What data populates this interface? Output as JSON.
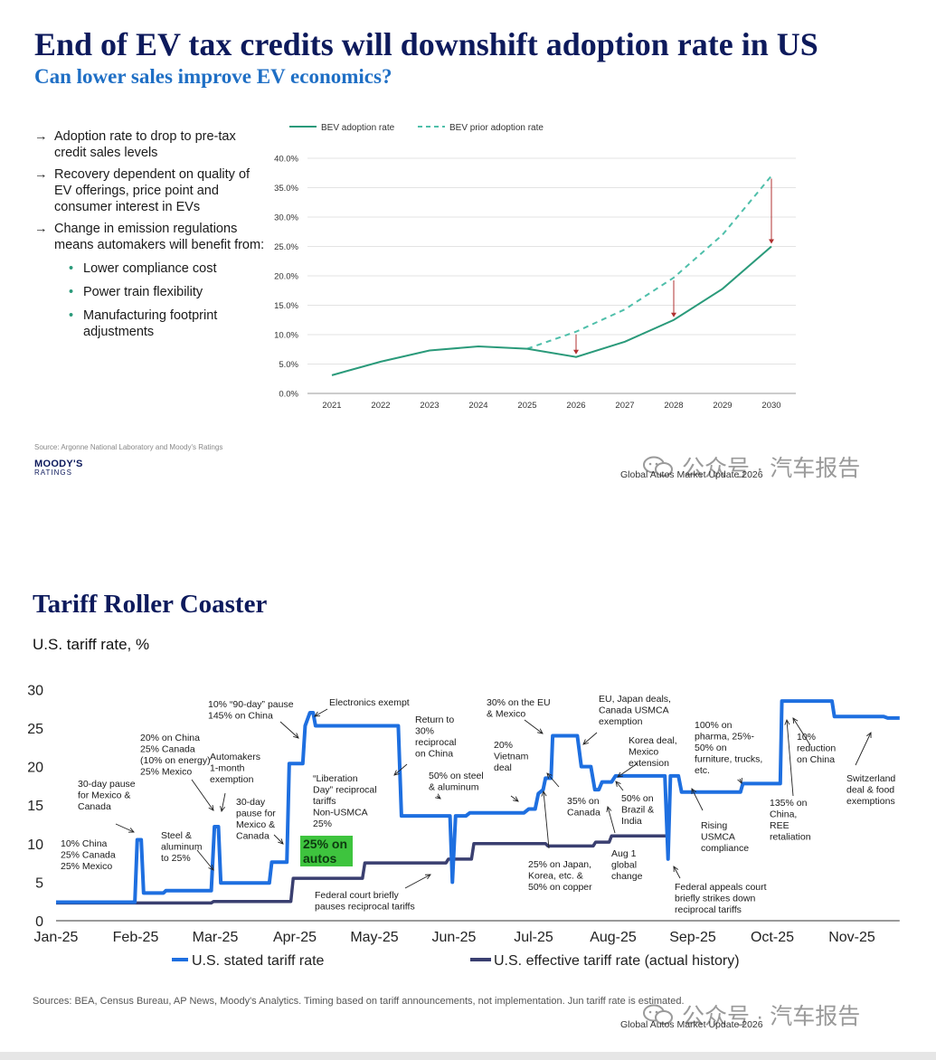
{
  "slide1": {
    "title": "End of EV tax credits will downshift adoption rate in US",
    "subtitle": "Can lower sales improve EV economics?",
    "bullets": [
      "Adoption rate to drop to pre-tax credit sales levels",
      "Recovery dependent on quality of EV offerings, price point and consumer interest in EVs",
      "Change in emission regulations means automakers will benefit from:"
    ],
    "sub_bullets": [
      "Lower compliance cost",
      "Power train flexibility",
      "Manufacturing footprint adjustments"
    ],
    "arrow_glyph": "→",
    "dot_glyph": "•",
    "source": "Source: Argonne National Laboratory and Moody's Ratings",
    "logo_line1": "MOODY'S",
    "logo_line2": "RATINGS",
    "footer": "Global Autos Market Update 2026",
    "watermark": "公众号 · 汽车报告"
  },
  "slide2": {
    "title": "Tariff Roller Coaster",
    "ylabel": "U.S. tariff rate, %",
    "source": "Sources: BEA, Census Bureau, AP News, Moody's Analytics. Timing based on tariff announcements, not implementation. Jun tariff rate is estimated.",
    "footer": "Global Autos Market Update 2026",
    "watermark": "公众号 · 汽车报告"
  },
  "colors": {
    "title_navy": "#0d1a5c",
    "subtitle_blue": "#1f6fc5",
    "bev_green": "#2a9a7a",
    "prior_teal": "#4fbfaa",
    "arrow_red": "#b03030",
    "stated_blue": "#1e6fe0",
    "effective_navy": "#3a3f70",
    "highlight_green": "#3ec43e"
  },
  "chart_data": [
    {
      "type": "line",
      "x": [
        "2021",
        "2022",
        "2023",
        "2024",
        "2025",
        "2026",
        "2027",
        "2028",
        "2029",
        "2030"
      ],
      "series": [
        {
          "name": "BEV adoption rate",
          "style": "solid",
          "values": [
            3.1,
            5.4,
            7.3,
            8.0,
            7.6,
            6.2,
            8.8,
            12.5,
            17.8,
            25.0
          ]
        },
        {
          "name": "BEV prior adoption rate",
          "style": "dashed",
          "start_index": 4,
          "values": [
            null,
            null,
            null,
            null,
            7.6,
            10.5,
            14.3,
            19.7,
            27.0,
            37.0
          ]
        }
      ],
      "drop_arrows_at": [
        "2026",
        "2028",
        "2030"
      ],
      "y_ticks": [
        "0.0%",
        "5.0%",
        "10.0%",
        "15.0%",
        "20.0%",
        "25.0%",
        "30.0%",
        "35.0%",
        "40.0%"
      ],
      "ylim": [
        0,
        40
      ],
      "legend_position": "top",
      "grid": "horizontal"
    },
    {
      "type": "line",
      "x_ticks": [
        "Jan-25",
        "Feb-25",
        "Mar-25",
        "Apr-25",
        "May-25",
        "Jun-25",
        "Jul-25",
        "Aug-25",
        "Sep-25",
        "Oct-25",
        "Nov-25"
      ],
      "y_ticks": [
        "0",
        "5",
        "10",
        "15",
        "20",
        "25",
        "30"
      ],
      "ylim": [
        0,
        30
      ],
      "xlim_months": [
        0,
        10.6
      ],
      "legend_position": "bottom",
      "series": [
        {
          "name": "U.S. stated tariff rate",
          "points": [
            [
              0,
              2.4
            ],
            [
              0.99,
              2.4
            ],
            [
              1.02,
              10.5
            ],
            [
              1.07,
              10.5
            ],
            [
              1.1,
              3.6
            ],
            [
              1.35,
              3.6
            ],
            [
              1.38,
              3.9
            ],
            [
              1.95,
              3.9
            ],
            [
              1.99,
              12.2
            ],
            [
              2.04,
              12.2
            ],
            [
              2.07,
              4.9
            ],
            [
              2.68,
              4.9
            ],
            [
              2.71,
              7.6
            ],
            [
              2.9,
              7.6
            ],
            [
              2.93,
              20.4
            ],
            [
              3.1,
              20.4
            ],
            [
              3.13,
              25.3
            ],
            [
              3.19,
              27.0
            ],
            [
              3.23,
              27.0
            ],
            [
              3.26,
              25.3
            ],
            [
              4.3,
              25.3
            ],
            [
              4.34,
              13.6
            ],
            [
              4.95,
              13.6
            ],
            [
              4.98,
              5.0
            ],
            [
              5.02,
              13.6
            ],
            [
              5.15,
              13.6
            ],
            [
              5.2,
              14.0
            ],
            [
              5.88,
              14.0
            ],
            [
              5.94,
              14.5
            ],
            [
              6.02,
              14.5
            ],
            [
              6.06,
              16.5
            ],
            [
              6.12,
              17.0
            ],
            [
              6.15,
              18.5
            ],
            [
              6.22,
              18.5
            ],
            [
              6.24,
              24.0
            ],
            [
              6.55,
              24.0
            ],
            [
              6.6,
              20.0
            ],
            [
              6.72,
              20.0
            ],
            [
              6.77,
              17.0
            ],
            [
              6.82,
              17.0
            ],
            [
              6.86,
              18.0
            ],
            [
              6.98,
              18.0
            ],
            [
              7.03,
              18.8
            ],
            [
              7.65,
              18.8
            ],
            [
              7.69,
              8.0
            ],
            [
              7.72,
              18.8
            ],
            [
              7.82,
              18.8
            ],
            [
              7.86,
              16.7
            ],
            [
              8.6,
              16.7
            ],
            [
              8.63,
              17.8
            ],
            [
              9.1,
              17.8
            ],
            [
              9.12,
              28.5
            ],
            [
              9.75,
              28.5
            ],
            [
              9.78,
              26.5
            ],
            [
              10.4,
              26.5
            ],
            [
              10.45,
              26.3
            ],
            [
              10.6,
              26.3
            ]
          ]
        },
        {
          "name": "U.S. effective tariff rate (actual history)",
          "points": [
            [
              0,
              2.3
            ],
            [
              1.95,
              2.3
            ],
            [
              1.98,
              2.5
            ],
            [
              2.95,
              2.5
            ],
            [
              2.98,
              5.5
            ],
            [
              3.85,
              5.5
            ],
            [
              3.88,
              7.5
            ],
            [
              4.9,
              7.5
            ],
            [
              4.93,
              8.0
            ],
            [
              5.22,
              8.0
            ],
            [
              5.25,
              10.0
            ],
            [
              6.15,
              10.0
            ],
            [
              6.18,
              9.7
            ],
            [
              6.75,
              9.7
            ],
            [
              6.78,
              10.2
            ],
            [
              6.95,
              10.2
            ],
            [
              6.98,
              11.0
            ],
            [
              7.7,
              11.0
            ]
          ]
        }
      ],
      "highlight_box": {
        "text": "25% on autos"
      },
      "annotations": [
        {
          "lines": [
            "30-day pause",
            "for Mexico &",
            "Canada"
          ]
        },
        {
          "lines": [
            "10% China",
            "25% Canada",
            "25% Mexico"
          ]
        },
        {
          "lines": [
            "20% on China",
            "25% Canada",
            "(10% on energy)",
            "25% Mexico"
          ]
        },
        {
          "lines": [
            "Steel &",
            "aluminum",
            "to 25%"
          ]
        },
        {
          "lines": [
            "Automakers",
            "1-month",
            "exemption"
          ]
        },
        {
          "lines": [
            "30-day",
            "pause for",
            "Mexico &",
            "Canada"
          ]
        },
        {
          "lines": [
            "10% “90-day” pause",
            "145% on China"
          ]
        },
        {
          "lines": [
            "Electronics exempt"
          ]
        },
        {
          "lines": [
            "“Liberation",
            "Day” reciprocal",
            "tariffs",
            "Non-USMCA",
            "25%"
          ]
        },
        {
          "lines": [
            "Return to",
            "30%",
            "reciprocal",
            "on China"
          ]
        },
        {
          "lines": [
            "Federal court briefly",
            "pauses reciprocal tariffs"
          ]
        },
        {
          "lines": [
            "50% on steel",
            "& aluminum"
          ]
        },
        {
          "lines": [
            "20%",
            "Vietnam",
            "deal"
          ]
        },
        {
          "lines": [
            "30% on the EU",
            "& Mexico"
          ]
        },
        {
          "lines": [
            "35% on",
            "Canada"
          ]
        },
        {
          "lines": [
            "25% on Japan,",
            "Korea, etc. &",
            "50% on copper"
          ]
        },
        {
          "lines": [
            "EU, Japan deals,",
            "Canada USMCA",
            "exemption"
          ]
        },
        {
          "lines": [
            "Korea deal,",
            "Mexico",
            "extension"
          ]
        },
        {
          "lines": [
            "50% on",
            "Brazil &",
            "India"
          ]
        },
        {
          "lines": [
            "Aug 1",
            "global",
            "change"
          ]
        },
        {
          "lines": [
            "Rising",
            "USMCA",
            "compliance"
          ]
        },
        {
          "lines": [
            "Federal appeals court",
            "briefly strikes down",
            "reciprocal tariffs"
          ]
        },
        {
          "lines": [
            "100% on",
            "pharma, 25%-",
            "50% on",
            "furniture, trucks,",
            "etc."
          ]
        },
        {
          "lines": [
            "10%",
            "reduction",
            "on China"
          ]
        },
        {
          "lines": [
            "135% on",
            "China,",
            "REE",
            "retaliation"
          ]
        },
        {
          "lines": [
            "Switzerland",
            "deal & food",
            "exemptions"
          ]
        }
      ]
    }
  ]
}
